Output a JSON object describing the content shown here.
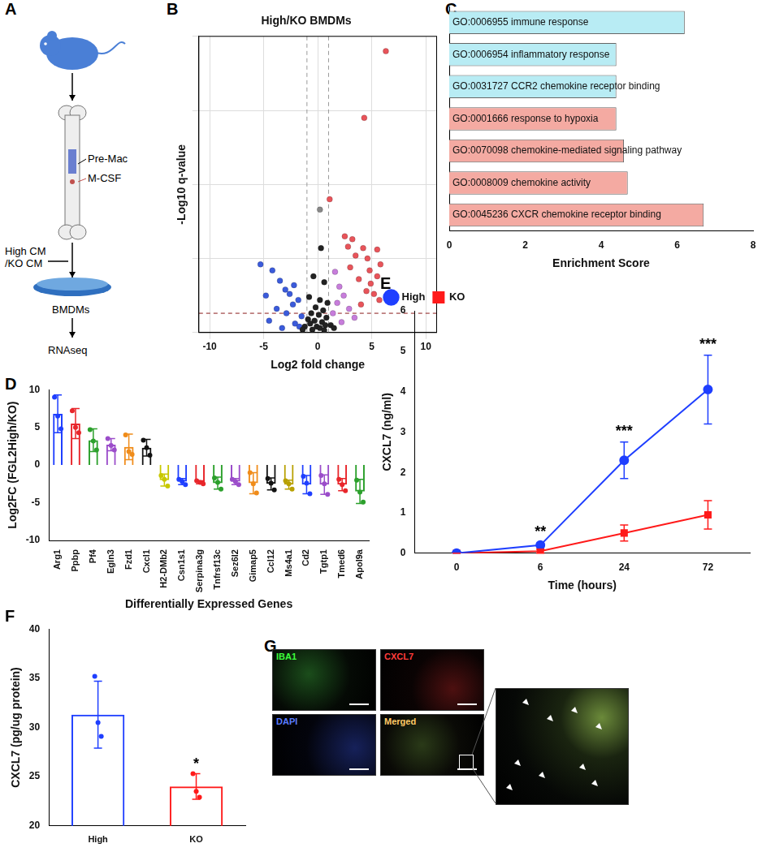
{
  "diagram": {
    "panel": "A",
    "labels": [
      "Pre-Mac",
      "M-CSF",
      "High CM",
      "/KO CM",
      "BMDMs",
      "RNAseq"
    ]
  },
  "chart_data": [
    {
      "panel": "B",
      "type": "scatter",
      "title": "High/KO BMDMs",
      "x_label": "Log2 fold change",
      "y_label": "-Log10 q-value",
      "xlim": [
        -11,
        11
      ],
      "xticks": [
        -10,
        -5,
        0,
        5,
        10
      ],
      "ylim": [
        0,
        20
      ],
      "yticks": [
        0,
        5,
        10,
        15,
        20
      ],
      "grid": true,
      "tick_labels": "x",
      "threshold_x": [
        -1,
        1
      ],
      "threshold_y": 1.3,
      "series": [
        {
          "color": "#222222",
          "x": [
            0.3,
            -0.4,
            0.6,
            -0.8,
            0.2,
            0.9,
            -0.2,
            0.5,
            -0.6,
            0.1,
            0.8,
            -0.9,
            -0.3,
            0.4,
            -0.7,
            0.7,
            -0.1,
            0.2,
            -0.5,
            0.6,
            1.2,
            -1.2,
            1.5,
            -1.4
          ],
          "y": [
            5.7,
            3.8,
            3.4,
            2.4,
            2.2,
            2.0,
            1.7,
            1.5,
            1.3,
            1.2,
            1.0,
            0.9,
            0.8,
            0.7,
            0.6,
            0.5,
            0.4,
            0.3,
            0.2,
            0.15,
            0.5,
            0.4,
            0.3,
            0.2
          ]
        },
        {
          "color": "#888888",
          "x": [
            0.2
          ],
          "y": [
            8.3
          ]
        },
        {
          "color": "#3b5bdb",
          "x": [
            -5.3,
            -4.2,
            -3.5,
            -2.2,
            -3.0,
            -2.6,
            -4.8,
            -1.8,
            -2.3,
            -3.8,
            -2.9,
            -1.5,
            -4.5,
            -2.1,
            -1.7,
            -3.3
          ],
          "y": [
            4.6,
            4.2,
            3.5,
            3.2,
            2.9,
            2.6,
            2.5,
            2.2,
            1.9,
            1.6,
            1.3,
            1.1,
            0.8,
            0.6,
            0.4,
            0.3
          ]
        },
        {
          "color": "#c77ddb",
          "x": [
            1.6,
            2.0,
            2.4,
            1.8,
            2.9,
            1.4,
            3.4,
            2.2
          ],
          "y": [
            4.1,
            3.1,
            2.5,
            2.0,
            1.6,
            1.3,
            1.0,
            0.7
          ]
        },
        {
          "color": "#e8545a",
          "x": [
            6.3,
            4.3,
            1.1,
            2.5,
            3.2,
            2.8,
            4.2,
            5.5,
            3.5,
            4.6,
            5.8,
            3.0,
            4.8,
            5.5,
            3.8,
            4.9,
            4.5,
            5.2,
            4.0,
            5.7
          ],
          "y": [
            19,
            14.5,
            9,
            6.5,
            6.3,
            5.8,
            5.7,
            5.6,
            5.2,
            5.0,
            4.6,
            4.4,
            4.2,
            3.8,
            3.6,
            3.3,
            2.8,
            2.6,
            1.9,
            2.2
          ]
        }
      ]
    },
    {
      "panel": "C",
      "type": "bar",
      "orientation": "horizontal",
      "categories": [
        "GO:0006955 immune response",
        "GO:0006954 inflammatory response",
        "GO:0031727 CCR2 chemokine receptor binding",
        "GO:0001666 response to hypoxia",
        "GO:0070098 chemokine-mediated signaling pathway",
        "GO:0008009 chemokine activity",
        "GO:0045236 CXCR chemokine receptor binding"
      ],
      "values": [
        6.2,
        4.4,
        4.4,
        4.4,
        4.6,
        4.7,
        6.7
      ],
      "colors": [
        "#b8ecf4",
        "#b8ecf4",
        "#b8ecf4",
        "#f4aaa2",
        "#f4aaa2",
        "#f4aaa2",
        "#f4aaa2"
      ],
      "x_label": "Enrichment Score",
      "xlim": [
        0,
        8
      ],
      "xticks": [
        0,
        2,
        4,
        6,
        8
      ],
      "grid": false,
      "tick_labels": "x"
    },
    {
      "panel": "D",
      "type": "bar",
      "categories": [
        "Arg1",
        "Ppbp",
        "Pf4",
        "Egln3",
        "Fzd1",
        "Cxcl1",
        "H2-DMb2",
        "Csn1s1",
        "Serpina3g",
        "Tnfrsf13c",
        "Sez6l2",
        "Gimap5",
        "Ccl12",
        "Ms4a1",
        "Cd2",
        "Tgtp1",
        "Tmed6",
        "Apol9a"
      ],
      "values": [
        6.8,
        5.5,
        3.3,
        2.7,
        2.4,
        2.3,
        -2.0,
        -2.2,
        -2.3,
        -2.4,
        -2.2,
        -2.4,
        -2.5,
        -2.6,
        -2.6,
        -2.6,
        -2.6,
        -3.5
      ],
      "errors": [
        2.5,
        2.0,
        1.5,
        0.8,
        1.7,
        1.1,
        0.8,
        0.4,
        0.2,
        0.8,
        0.4,
        1.4,
        0.8,
        0.6,
        1.2,
        1.3,
        0.8,
        1.6
      ],
      "points": [
        [
          9.0,
          6.5,
          4.8
        ],
        [
          7.2,
          5.0,
          4.3
        ],
        [
          4.7,
          3.2,
          2.0
        ],
        [
          3.5,
          2.6,
          2.0
        ],
        [
          4.0,
          1.8,
          1.4
        ],
        [
          3.3,
          2.3,
          1.3
        ],
        [
          -1.4,
          -1.9,
          -2.8
        ],
        [
          -1.9,
          -2.2,
          -2.6
        ],
        [
          -2.1,
          -2.3,
          -2.5
        ],
        [
          -1.7,
          -2.3,
          -3.2
        ],
        [
          -1.9,
          -2.2,
          -2.6
        ],
        [
          -1.0,
          -2.5,
          -3.7
        ],
        [
          -1.8,
          -2.4,
          -3.3
        ],
        [
          -2.1,
          -2.5,
          -3.2
        ],
        [
          -1.5,
          -2.4,
          -3.8
        ],
        [
          -1.4,
          -2.5,
          -3.9
        ],
        [
          -1.9,
          -2.6,
          -3.4
        ],
        [
          -2.0,
          -3.6,
          -4.9
        ]
      ],
      "colors": [
        "#1f3fff",
        "#e8262b",
        "#2ca02c",
        "#9b4dca",
        "#f08c1a",
        "#111111",
        "#c8c800",
        "#1f3fff",
        "#e8262b",
        "#2ca02c",
        "#9b4dca",
        "#f08c1a",
        "#111111",
        "#b8a000",
        "#1f3fff",
        "#9b4dca",
        "#e8262b",
        "#2ca02c"
      ],
      "x_label": "Differentially Expressed Genes",
      "y_label": "Log2FC (FGL2High/KO)",
      "ylim": [
        -10,
        10
      ],
      "yticks": [
        -10,
        -5,
        0,
        5,
        10
      ],
      "grid": false
    },
    {
      "panel": "E",
      "type": "line",
      "categories": [
        "0",
        "6",
        "24",
        "72"
      ],
      "x_label": "Time (hours)",
      "y_label": "CXCL7 (ng/ml)",
      "ylim": [
        0,
        6
      ],
      "yticks": [
        0,
        1,
        2,
        3,
        4,
        5,
        6
      ],
      "legend": "upper left",
      "grid": false,
      "series": [
        {
          "name": "High",
          "color": "#1f3fff",
          "marker": "circle",
          "values": [
            0,
            0.2,
            2.3,
            4.05
          ],
          "errors": [
            0,
            0.05,
            0.45,
            0.85
          ]
        },
        {
          "name": "KO",
          "color": "#ff1a1a",
          "marker": "square",
          "values": [
            0,
            0.05,
            0.5,
            0.95
          ],
          "errors": [
            0,
            0.05,
            0.2,
            0.35
          ]
        }
      ],
      "annotations": [
        {
          "category": "6",
          "text": "**"
        },
        {
          "category": "24",
          "text": "***"
        },
        {
          "category": "72",
          "text": "***"
        }
      ]
    },
    {
      "panel": "F",
      "type": "bar",
      "categories": [
        "High",
        "KO"
      ],
      "values": [
        31.3,
        24.0
      ],
      "errors": [
        3.4,
        1.3
      ],
      "points": [
        [
          35.2,
          30.5,
          29.1
        ],
        [
          25.3,
          23.5,
          22.9
        ]
      ],
      "colors": [
        "#1f3fff",
        "#ff1a1a"
      ],
      "y_label": "CXCL7 (pg/ug protein)",
      "ylim": [
        20,
        40
      ],
      "yticks": [
        20,
        25,
        30,
        35,
        40
      ],
      "grid": false,
      "annotations": [
        {
          "category": "KO",
          "text": "*"
        }
      ]
    }
  ],
  "images": {
    "panel": "G",
    "channels": [
      "IBA1",
      "CXCL7",
      "DAPI",
      "Merged"
    ]
  }
}
